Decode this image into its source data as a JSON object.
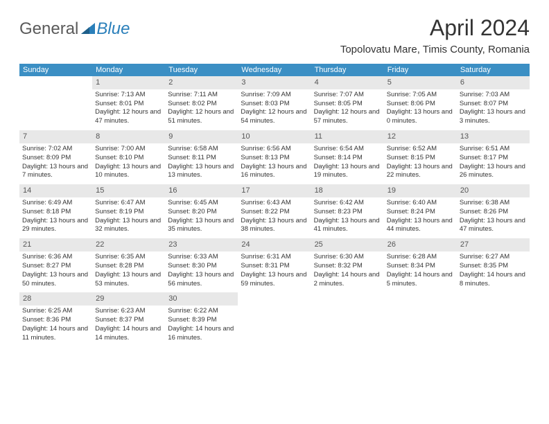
{
  "brand": {
    "part1": "General",
    "part2": "Blue"
  },
  "title": "April 2024",
  "location": "Topolovatu Mare, Timis County, Romania",
  "colors": {
    "header_bg": "#3b8fc4",
    "header_text": "#ffffff",
    "daynum_bg": "#e8e8e8",
    "body_text": "#333333",
    "brand_gray": "#5a5a5a",
    "brand_blue": "#2a7fba"
  },
  "weekdays": [
    "Sunday",
    "Monday",
    "Tuesday",
    "Wednesday",
    "Thursday",
    "Friday",
    "Saturday"
  ],
  "weeks": [
    {
      "nums": [
        "",
        "1",
        "2",
        "3",
        "4",
        "5",
        "6"
      ],
      "cells": [
        null,
        {
          "sunrise": "Sunrise: 7:13 AM",
          "sunset": "Sunset: 8:01 PM",
          "daylight": "Daylight: 12 hours and 47 minutes."
        },
        {
          "sunrise": "Sunrise: 7:11 AM",
          "sunset": "Sunset: 8:02 PM",
          "daylight": "Daylight: 12 hours and 51 minutes."
        },
        {
          "sunrise": "Sunrise: 7:09 AM",
          "sunset": "Sunset: 8:03 PM",
          "daylight": "Daylight: 12 hours and 54 minutes."
        },
        {
          "sunrise": "Sunrise: 7:07 AM",
          "sunset": "Sunset: 8:05 PM",
          "daylight": "Daylight: 12 hours and 57 minutes."
        },
        {
          "sunrise": "Sunrise: 7:05 AM",
          "sunset": "Sunset: 8:06 PM",
          "daylight": "Daylight: 13 hours and 0 minutes."
        },
        {
          "sunrise": "Sunrise: 7:03 AM",
          "sunset": "Sunset: 8:07 PM",
          "daylight": "Daylight: 13 hours and 3 minutes."
        }
      ]
    },
    {
      "nums": [
        "7",
        "8",
        "9",
        "10",
        "11",
        "12",
        "13"
      ],
      "cells": [
        {
          "sunrise": "Sunrise: 7:02 AM",
          "sunset": "Sunset: 8:09 PM",
          "daylight": "Daylight: 13 hours and 7 minutes."
        },
        {
          "sunrise": "Sunrise: 7:00 AM",
          "sunset": "Sunset: 8:10 PM",
          "daylight": "Daylight: 13 hours and 10 minutes."
        },
        {
          "sunrise": "Sunrise: 6:58 AM",
          "sunset": "Sunset: 8:11 PM",
          "daylight": "Daylight: 13 hours and 13 minutes."
        },
        {
          "sunrise": "Sunrise: 6:56 AM",
          "sunset": "Sunset: 8:13 PM",
          "daylight": "Daylight: 13 hours and 16 minutes."
        },
        {
          "sunrise": "Sunrise: 6:54 AM",
          "sunset": "Sunset: 8:14 PM",
          "daylight": "Daylight: 13 hours and 19 minutes."
        },
        {
          "sunrise": "Sunrise: 6:52 AM",
          "sunset": "Sunset: 8:15 PM",
          "daylight": "Daylight: 13 hours and 22 minutes."
        },
        {
          "sunrise": "Sunrise: 6:51 AM",
          "sunset": "Sunset: 8:17 PM",
          "daylight": "Daylight: 13 hours and 26 minutes."
        }
      ]
    },
    {
      "nums": [
        "14",
        "15",
        "16",
        "17",
        "18",
        "19",
        "20"
      ],
      "cells": [
        {
          "sunrise": "Sunrise: 6:49 AM",
          "sunset": "Sunset: 8:18 PM",
          "daylight": "Daylight: 13 hours and 29 minutes."
        },
        {
          "sunrise": "Sunrise: 6:47 AM",
          "sunset": "Sunset: 8:19 PM",
          "daylight": "Daylight: 13 hours and 32 minutes."
        },
        {
          "sunrise": "Sunrise: 6:45 AM",
          "sunset": "Sunset: 8:20 PM",
          "daylight": "Daylight: 13 hours and 35 minutes."
        },
        {
          "sunrise": "Sunrise: 6:43 AM",
          "sunset": "Sunset: 8:22 PM",
          "daylight": "Daylight: 13 hours and 38 minutes."
        },
        {
          "sunrise": "Sunrise: 6:42 AM",
          "sunset": "Sunset: 8:23 PM",
          "daylight": "Daylight: 13 hours and 41 minutes."
        },
        {
          "sunrise": "Sunrise: 6:40 AM",
          "sunset": "Sunset: 8:24 PM",
          "daylight": "Daylight: 13 hours and 44 minutes."
        },
        {
          "sunrise": "Sunrise: 6:38 AM",
          "sunset": "Sunset: 8:26 PM",
          "daylight": "Daylight: 13 hours and 47 minutes."
        }
      ]
    },
    {
      "nums": [
        "21",
        "22",
        "23",
        "24",
        "25",
        "26",
        "27"
      ],
      "cells": [
        {
          "sunrise": "Sunrise: 6:36 AM",
          "sunset": "Sunset: 8:27 PM",
          "daylight": "Daylight: 13 hours and 50 minutes."
        },
        {
          "sunrise": "Sunrise: 6:35 AM",
          "sunset": "Sunset: 8:28 PM",
          "daylight": "Daylight: 13 hours and 53 minutes."
        },
        {
          "sunrise": "Sunrise: 6:33 AM",
          "sunset": "Sunset: 8:30 PM",
          "daylight": "Daylight: 13 hours and 56 minutes."
        },
        {
          "sunrise": "Sunrise: 6:31 AM",
          "sunset": "Sunset: 8:31 PM",
          "daylight": "Daylight: 13 hours and 59 minutes."
        },
        {
          "sunrise": "Sunrise: 6:30 AM",
          "sunset": "Sunset: 8:32 PM",
          "daylight": "Daylight: 14 hours and 2 minutes."
        },
        {
          "sunrise": "Sunrise: 6:28 AM",
          "sunset": "Sunset: 8:34 PM",
          "daylight": "Daylight: 14 hours and 5 minutes."
        },
        {
          "sunrise": "Sunrise: 6:27 AM",
          "sunset": "Sunset: 8:35 PM",
          "daylight": "Daylight: 14 hours and 8 minutes."
        }
      ]
    },
    {
      "nums": [
        "28",
        "29",
        "30",
        "",
        "",
        "",
        ""
      ],
      "cells": [
        {
          "sunrise": "Sunrise: 6:25 AM",
          "sunset": "Sunset: 8:36 PM",
          "daylight": "Daylight: 14 hours and 11 minutes."
        },
        {
          "sunrise": "Sunrise: 6:23 AM",
          "sunset": "Sunset: 8:37 PM",
          "daylight": "Daylight: 14 hours and 14 minutes."
        },
        {
          "sunrise": "Sunrise: 6:22 AM",
          "sunset": "Sunset: 8:39 PM",
          "daylight": "Daylight: 14 hours and 16 minutes."
        },
        null,
        null,
        null,
        null
      ]
    }
  ]
}
